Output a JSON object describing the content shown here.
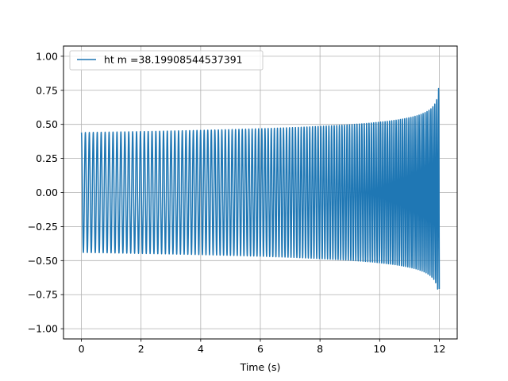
{
  "chart_data": {
    "type": "line",
    "title": "",
    "xlabel": "Time (s)",
    "ylabel": "",
    "xlim": [
      -0.6,
      12.6
    ],
    "ylim": [
      -1.075,
      1.075
    ],
    "grid": true,
    "legend": {
      "placement": "top-left"
    },
    "xticks": [
      0,
      2,
      4,
      6,
      8,
      10,
      12
    ],
    "xtick_labels": [
      "0",
      "2",
      "4",
      "6",
      "8",
      "10",
      "12"
    ],
    "yticks": [
      -1.0,
      -0.75,
      -0.5,
      -0.25,
      0.0,
      0.25,
      0.5,
      0.75,
      1.0
    ],
    "ytick_labels": [
      "−1.00",
      "−0.75",
      "−0.50",
      "−0.25",
      "0.00",
      "0.25",
      "0.50",
      "0.75",
      "1.00"
    ],
    "series": [
      {
        "name": "ht m =38.19908544537391",
        "color": "#1f77b4",
        "description_model": "chirp",
        "t_start": 0,
        "t_end": 12,
        "amplitude_start": 0.44,
        "amplitude_end": 1.0,
        "cycles_total": 140
      }
    ]
  }
}
